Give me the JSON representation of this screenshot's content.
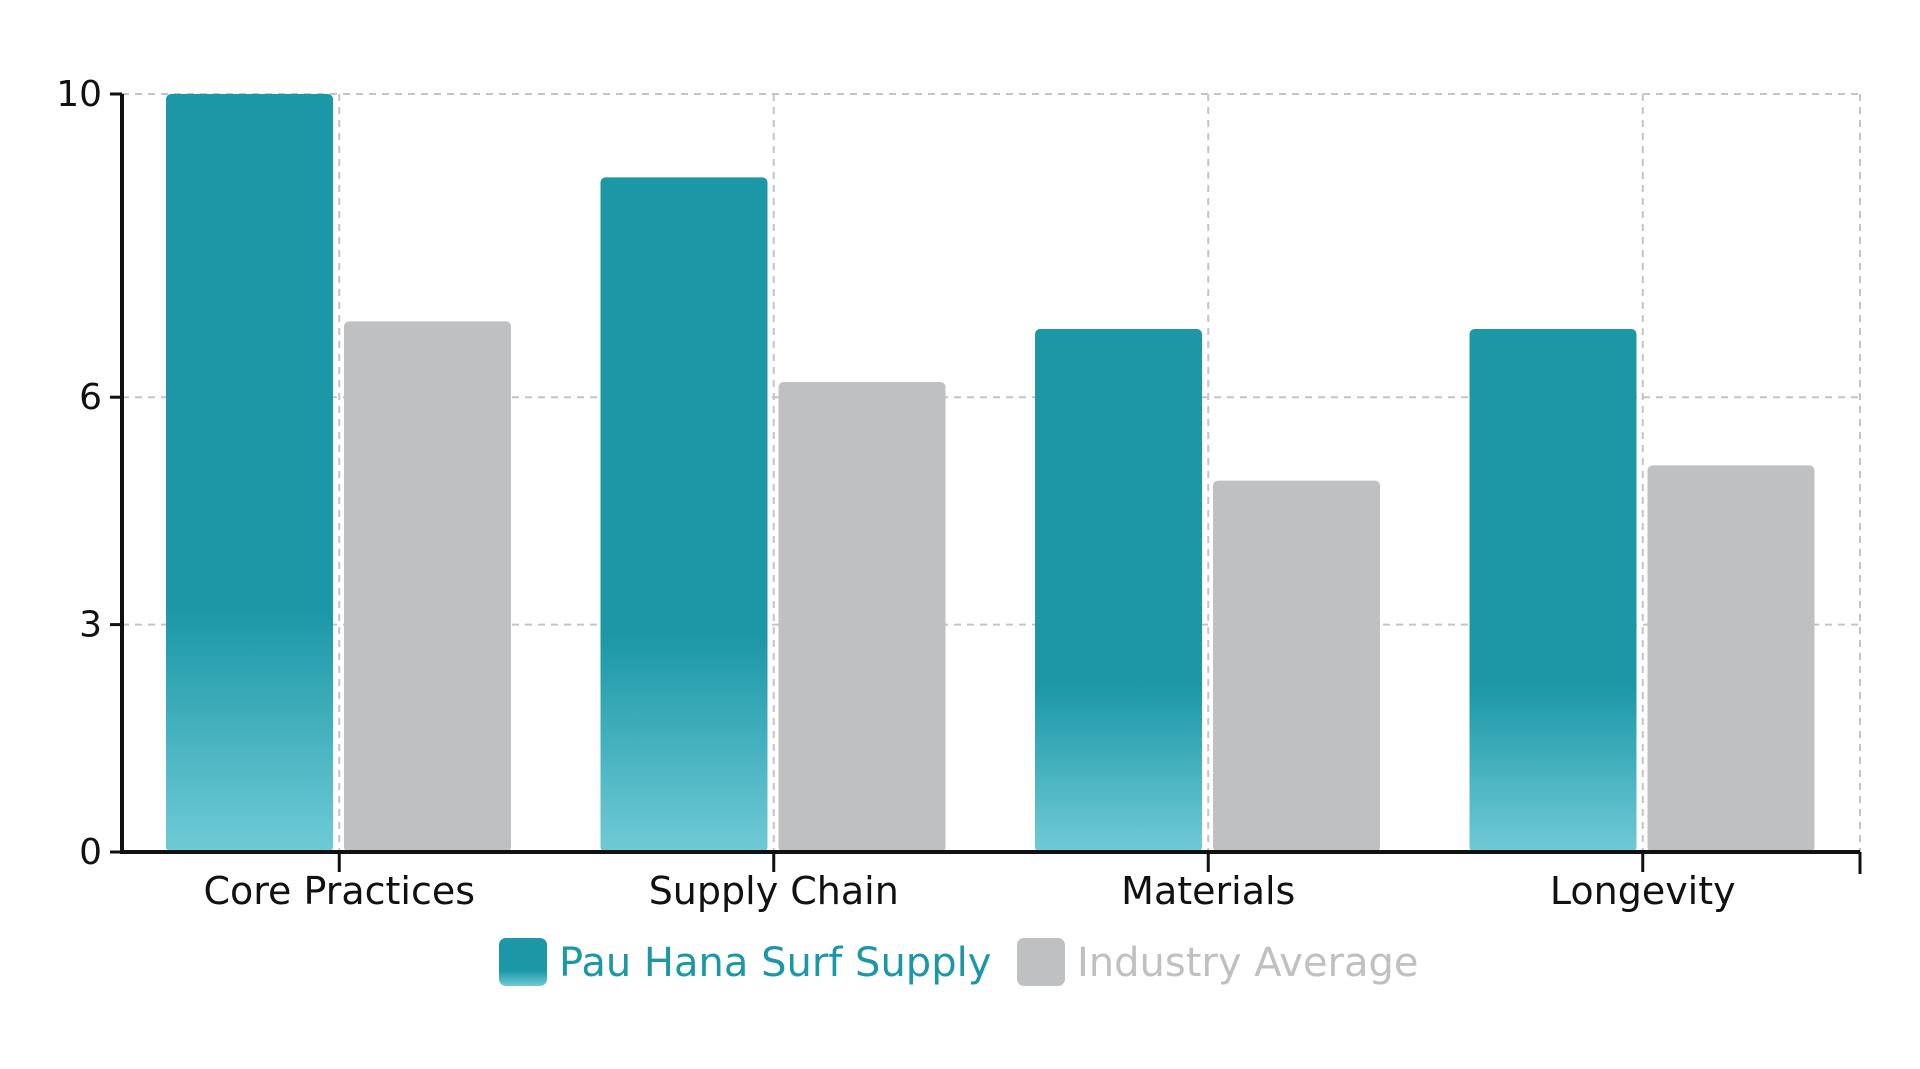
{
  "chart_data": {
    "type": "bar",
    "categories": [
      "Core Practices",
      "Supply Chain",
      "Materials",
      "Longevity"
    ],
    "series": [
      {
        "name": "Pau Hana Surf Supply",
        "values": [
          10.0,
          8.9,
          6.9,
          6.9
        ],
        "color": "#1b97a6",
        "color_light": "#6fcbd6"
      },
      {
        "name": "Industry Average",
        "values": [
          7.0,
          6.2,
          4.9,
          5.1
        ],
        "color": "#bfc0c2"
      }
    ],
    "yticks": [
      0,
      3,
      6,
      10
    ],
    "ylim": [
      0,
      10
    ],
    "grid": true,
    "legend_position": "bottom-center"
  }
}
